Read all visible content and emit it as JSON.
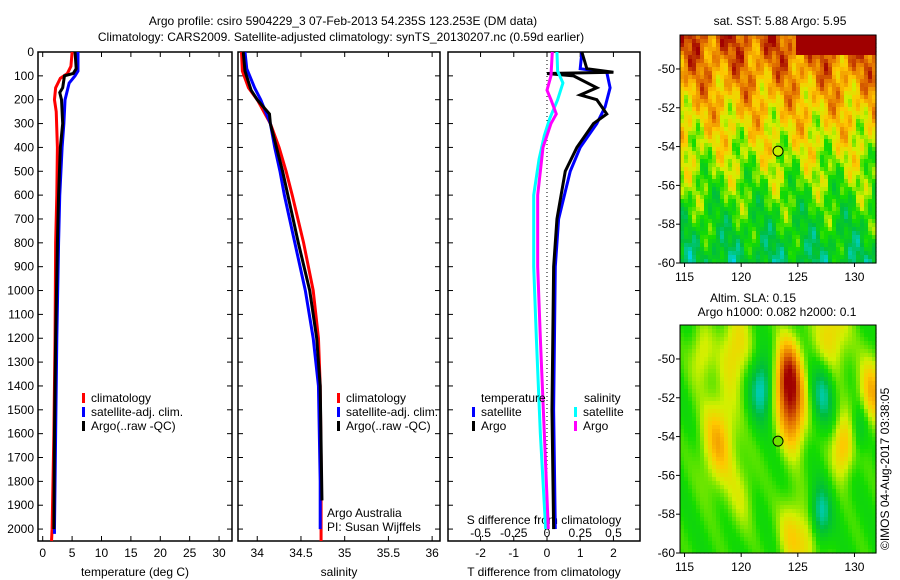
{
  "title": {
    "line1": "Argo profile: csiro 5904229_3 07-Feb-2013 54.235S 123.253E (DM data)",
    "line2": "Climatology: CARS2009. Satellite-adjusted climatology: synTS_20130207.nc (0.59d earlier)"
  },
  "colors": {
    "climatology": "#ff0000",
    "satellite": "#0000ff",
    "argo": "#000000",
    "sal_satellite": "#00ffff",
    "sal_argo": "#ff00ff"
  },
  "chart_data": [
    {
      "type": "line",
      "name": "temperature",
      "xlabel": "temperature (deg C)",
      "ylabel": "",
      "xlim": [
        -0.8,
        32.2
      ],
      "ylim": [
        2050,
        0
      ],
      "xticks": [
        0,
        5,
        10,
        15,
        20,
        25,
        30
      ],
      "yticks": [
        0,
        100,
        200,
        300,
        400,
        500,
        600,
        700,
        800,
        900,
        1000,
        1100,
        1200,
        1300,
        1400,
        1500,
        1600,
        1700,
        1800,
        1900,
        2000
      ],
      "legend": [
        "climatology",
        "satellite-adj. clim.",
        "Argo(..raw -QC)"
      ],
      "series": [
        {
          "name": "climatology",
          "color": "#ff0000",
          "points": [
            [
              0,
              5.0
            ],
            [
              60,
              4.8
            ],
            [
              90,
              4.2
            ],
            [
              110,
              3.0
            ],
            [
              150,
              2.2
            ],
            [
              200,
              2.0
            ],
            [
              250,
              2.3
            ],
            [
              400,
              2.5
            ],
            [
              600,
              2.4
            ],
            [
              800,
              2.2
            ],
            [
              1200,
              2.1
            ],
            [
              1600,
              1.9
            ],
            [
              2000,
              1.6
            ],
            [
              2050,
              1.5
            ]
          ]
        },
        {
          "name": "satellite-adj. clim.",
          "color": "#0000ff",
          "points": [
            [
              0,
              6.0
            ],
            [
              80,
              6.0
            ],
            [
              100,
              5.5
            ],
            [
              130,
              4.5
            ],
            [
              200,
              3.8
            ],
            [
              300,
              3.6
            ],
            [
              400,
              3.3
            ],
            [
              600,
              2.9
            ],
            [
              800,
              2.7
            ],
            [
              1200,
              2.4
            ],
            [
              1600,
              2.2
            ],
            [
              2000,
              2.0
            ],
            [
              2020,
              2.0
            ]
          ]
        },
        {
          "name": "Argo(..raw -QC)",
          "color": "#000000",
          "points": [
            [
              0,
              5.5
            ],
            [
              70,
              5.7
            ],
            [
              90,
              5.2
            ],
            [
              100,
              3.7
            ],
            [
              150,
              3.4
            ],
            [
              170,
              2.9
            ],
            [
              200,
              3.2
            ],
            [
              300,
              3.4
            ],
            [
              400,
              3.0
            ],
            [
              600,
              2.7
            ],
            [
              800,
              2.5
            ],
            [
              1200,
              2.2
            ],
            [
              1600,
              2.0
            ],
            [
              2000,
              1.9
            ]
          ]
        }
      ]
    },
    {
      "type": "line",
      "name": "salinity",
      "xlabel": "salinity",
      "xlim": [
        33.78,
        36.09
      ],
      "ylim": [
        2050,
        0
      ],
      "xticks": [
        34,
        34.5,
        35,
        35.5,
        36
      ],
      "legend": [
        "climatology",
        "satellite-adj. clim.",
        "Argo(..raw -QC)"
      ],
      "annotation": [
        "Argo Australia",
        "PI: Susan Wijffels"
      ],
      "series": [
        {
          "name": "climatology",
          "color": "#ff0000",
          "points": [
            [
              0,
              33.82
            ],
            [
              80,
              33.83
            ],
            [
              150,
              33.9
            ],
            [
              200,
              34.0
            ],
            [
              300,
              34.15
            ],
            [
              400,
              34.25
            ],
            [
              500,
              34.33
            ],
            [
              600,
              34.4
            ],
            [
              800,
              34.53
            ],
            [
              1000,
              34.64
            ],
            [
              1200,
              34.7
            ],
            [
              1400,
              34.72
            ],
            [
              1700,
              34.73
            ],
            [
              2050,
              34.73
            ]
          ]
        },
        {
          "name": "satellite-adj. clim.",
          "color": "#0000ff",
          "points": [
            [
              0,
              33.86
            ],
            [
              70,
              33.88
            ],
            [
              150,
              33.97
            ],
            [
              200,
              34.04
            ],
            [
              300,
              34.15
            ],
            [
              400,
              34.2
            ],
            [
              500,
              34.26
            ],
            [
              600,
              34.31
            ],
            [
              800,
              34.43
            ],
            [
              1000,
              34.55
            ],
            [
              1200,
              34.64
            ],
            [
              1400,
              34.7
            ],
            [
              1800,
              34.72
            ],
            [
              2000,
              34.72
            ]
          ]
        },
        {
          "name": "Argo(..raw -QC)",
          "color": "#000000",
          "points": [
            [
              0,
              33.84
            ],
            [
              80,
              33.86
            ],
            [
              160,
              33.93
            ],
            [
              200,
              34.0
            ],
            [
              260,
              34.14
            ],
            [
              300,
              34.15
            ],
            [
              400,
              34.22
            ],
            [
              500,
              34.29
            ],
            [
              600,
              34.35
            ],
            [
              800,
              34.47
            ],
            [
              1000,
              34.6
            ],
            [
              1200,
              34.68
            ],
            [
              1400,
              34.72
            ],
            [
              1880,
              34.74
            ]
          ]
        }
      ]
    },
    {
      "type": "line",
      "name": "difference",
      "xlabel": "T difference from climatology",
      "xlabel2": "S difference from climatology",
      "xlim": [
        -2.98,
        2.8
      ],
      "ylim": [
        2050,
        0
      ],
      "xticks": [
        -2,
        -1,
        0,
        1,
        2
      ],
      "xticks2": [
        -0.5,
        -0.25,
        0,
        0.25,
        0.5
      ],
      "legend_titles": [
        "temperature",
        "salinity"
      ],
      "legend": [
        "satellite",
        "Argo",
        "satellite",
        "Argo"
      ],
      "series": [
        {
          "name": "temperature satellite",
          "axis": "T",
          "color": "#0000ff",
          "points": [
            [
              0,
              1.05
            ],
            [
              70,
              1.0
            ],
            [
              85,
              1.8
            ],
            [
              150,
              1.9
            ],
            [
              230,
              1.75
            ],
            [
              300,
              1.5
            ],
            [
              400,
              1.0
            ],
            [
              500,
              0.7
            ],
            [
              700,
              0.35
            ],
            [
              900,
              0.25
            ],
            [
              1500,
              0.2
            ],
            [
              2000,
              0.25
            ]
          ]
        },
        {
          "name": "temperature Argo",
          "axis": "T",
          "color": "#000000",
          "points": [
            [
              0,
              1.05
            ],
            [
              70,
              1.2
            ],
            [
              85,
              2.0
            ],
            [
              90,
              0.0
            ],
            [
              100,
              0.8
            ],
            [
              150,
              1.5
            ],
            [
              180,
              1.0
            ],
            [
              200,
              1.5
            ],
            [
              260,
              1.8
            ],
            [
              300,
              1.4
            ],
            [
              400,
              0.9
            ],
            [
              500,
              0.55
            ],
            [
              700,
              0.3
            ],
            [
              900,
              0.2
            ],
            [
              1500,
              0.15
            ],
            [
              2000,
              0.2
            ]
          ]
        },
        {
          "name": "salinity satellite",
          "axis": "S",
          "color": "#00ffff",
          "points": [
            [
              0,
              0.075
            ],
            [
              80,
              0.08
            ],
            [
              130,
              0.12
            ],
            [
              200,
              0.08
            ],
            [
              280,
              0.02
            ],
            [
              350,
              -0.02
            ],
            [
              450,
              -0.06
            ],
            [
              600,
              -0.1
            ],
            [
              900,
              -0.1
            ],
            [
              1200,
              -0.08
            ],
            [
              1600,
              -0.05
            ],
            [
              2000,
              -0.01
            ]
          ]
        },
        {
          "name": "salinity Argo",
          "axis": "S",
          "color": "#ff00ff",
          "points": [
            [
              0,
              0.04
            ],
            [
              100,
              0.03
            ],
            [
              160,
              0.0
            ],
            [
              200,
              0.03
            ],
            [
              260,
              0.07
            ],
            [
              300,
              0.03
            ],
            [
              400,
              -0.03
            ],
            [
              600,
              -0.07
            ],
            [
              900,
              -0.07
            ],
            [
              1200,
              -0.05
            ],
            [
              1600,
              -0.02
            ],
            [
              2000,
              0.01
            ]
          ]
        }
      ]
    },
    {
      "type": "heatmap",
      "name": "sst-map",
      "title": "sat. SST: 5.88 Argo: 5.95",
      "xlim": [
        114.6,
        131.9
      ],
      "ylim": [
        -60,
        -48.25
      ],
      "xticks": [
        115,
        120,
        125,
        130
      ],
      "yticks": [
        -50,
        -52,
        -54,
        -56,
        -58,
        -60
      ],
      "marker": {
        "lon": 123.253,
        "lat": -54.235
      }
    },
    {
      "type": "heatmap",
      "name": "sla-map",
      "title": "Altim. SLA: 0.15",
      "subtitle": "Argo h1000: 0.082 h2000: 0.1",
      "xlim": [
        114.6,
        131.9
      ],
      "ylim": [
        -60,
        -48.25
      ],
      "xticks": [
        115,
        120,
        125,
        130
      ],
      "yticks": [
        -50,
        -52,
        -54,
        -56,
        -58,
        -60
      ],
      "marker": {
        "lon": 123.253,
        "lat": -54.235
      }
    }
  ],
  "credit": "©IMOS 04-Aug-2017 03:38:05"
}
